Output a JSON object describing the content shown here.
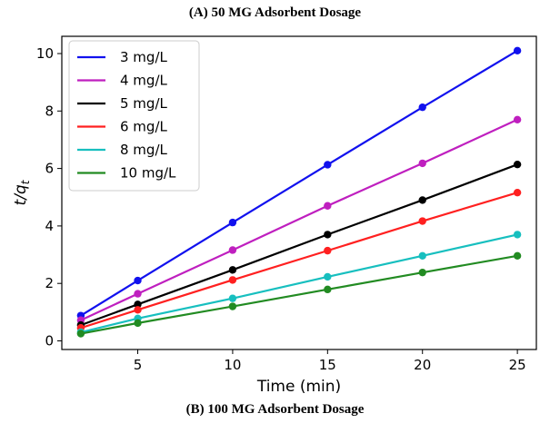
{
  "figure": {
    "title_a": "(A) 50 MG Adsorbent Dosage",
    "title_b": "(B) 100 MG Adsorbent Dosage"
  },
  "chart_data": {
    "type": "line",
    "title": "(A) 50 MG Adsorbent Dosage",
    "xlabel": "Time (min)",
    "ylabel": "t/q_t",
    "xlim": [
      1,
      26
    ],
    "ylim": [
      -0.3,
      10.6
    ],
    "xticks": [
      5,
      10,
      15,
      20,
      25
    ],
    "yticks": [
      0,
      2,
      4,
      6,
      8,
      10
    ],
    "grid": false,
    "legend_position": "top-left",
    "x": [
      2,
      5,
      10,
      15,
      20,
      25
    ],
    "series": [
      {
        "name": "3 mg/L",
        "color": "#1111ee",
        "values": [
          0.88,
          2.1,
          4.12,
          6.13,
          8.13,
          10.1
        ]
      },
      {
        "name": "4 mg/L",
        "color": "#bf1fbf",
        "values": [
          0.72,
          1.64,
          3.16,
          4.7,
          6.18,
          7.7
        ]
      },
      {
        "name": "5 mg/L",
        "color": "#000000",
        "values": [
          0.55,
          1.27,
          2.47,
          3.7,
          4.9,
          6.14
        ]
      },
      {
        "name": "6 mg/L",
        "color": "#ff2020",
        "values": [
          0.45,
          1.08,
          2.12,
          3.14,
          4.17,
          5.16
        ]
      },
      {
        "name": "8 mg/L",
        "color": "#17bfbf",
        "values": [
          0.3,
          0.78,
          1.48,
          2.23,
          2.96,
          3.7
        ]
      },
      {
        "name": "10 mg/L",
        "color": "#228b22",
        "values": [
          0.25,
          0.62,
          1.2,
          1.79,
          2.38,
          2.96
        ]
      }
    ]
  }
}
